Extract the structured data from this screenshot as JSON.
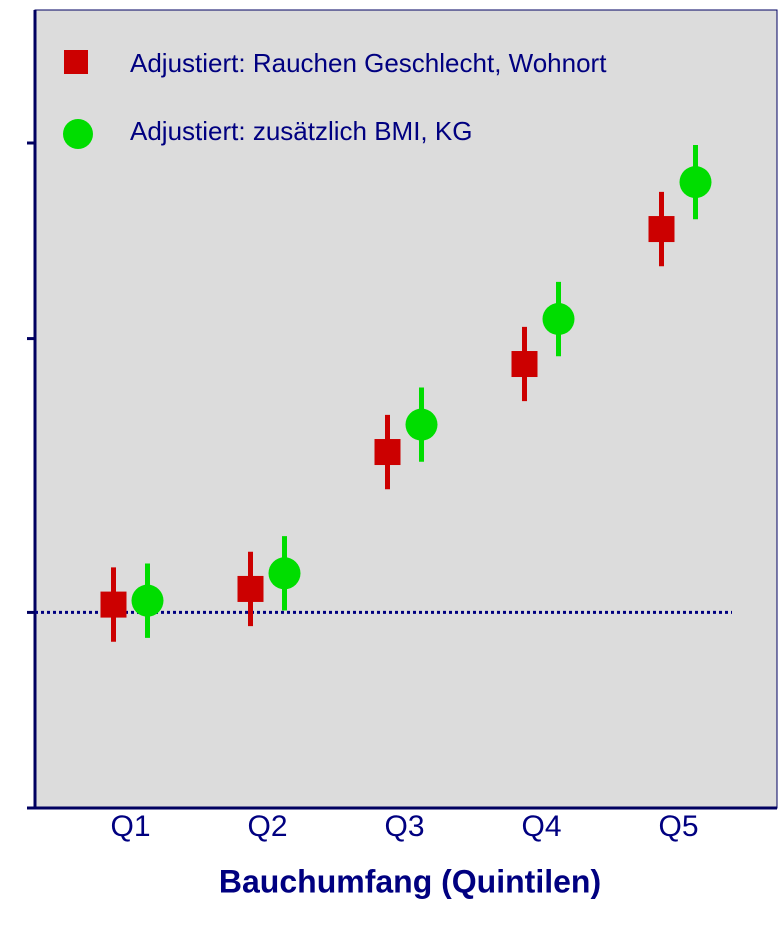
{
  "chart_data": {
    "type": "errorbar",
    "x_label": "Bauchumfang (Quintilen)",
    "categories": [
      "Q1",
      "Q2",
      "Q3",
      "Q4",
      "Q5"
    ],
    "series": [
      {
        "name": "Adjustiert: Rauchen Geschlecht, Wohnort",
        "color": "#cc0000",
        "marker": "square",
        "values": [
          1.02,
          1.06,
          1.41,
          1.635,
          1.98
        ],
        "errors": [
          0.095,
          0.095,
          0.095,
          0.095,
          0.095
        ]
      },
      {
        "name": "Adjustiert: zusätzlich BMI, KG",
        "color": "#00dd00",
        "marker": "circle",
        "values": [
          1.03,
          1.1,
          1.48,
          1.75,
          2.1
        ],
        "errors": [
          0.095,
          0.095,
          0.095,
          0.095,
          0.095
        ]
      }
    ],
    "ylim": [
      0.5,
      2.54
    ],
    "yticks": [
      0.5,
      1,
      1.7,
      2.2
    ],
    "reference_line": 1
  }
}
